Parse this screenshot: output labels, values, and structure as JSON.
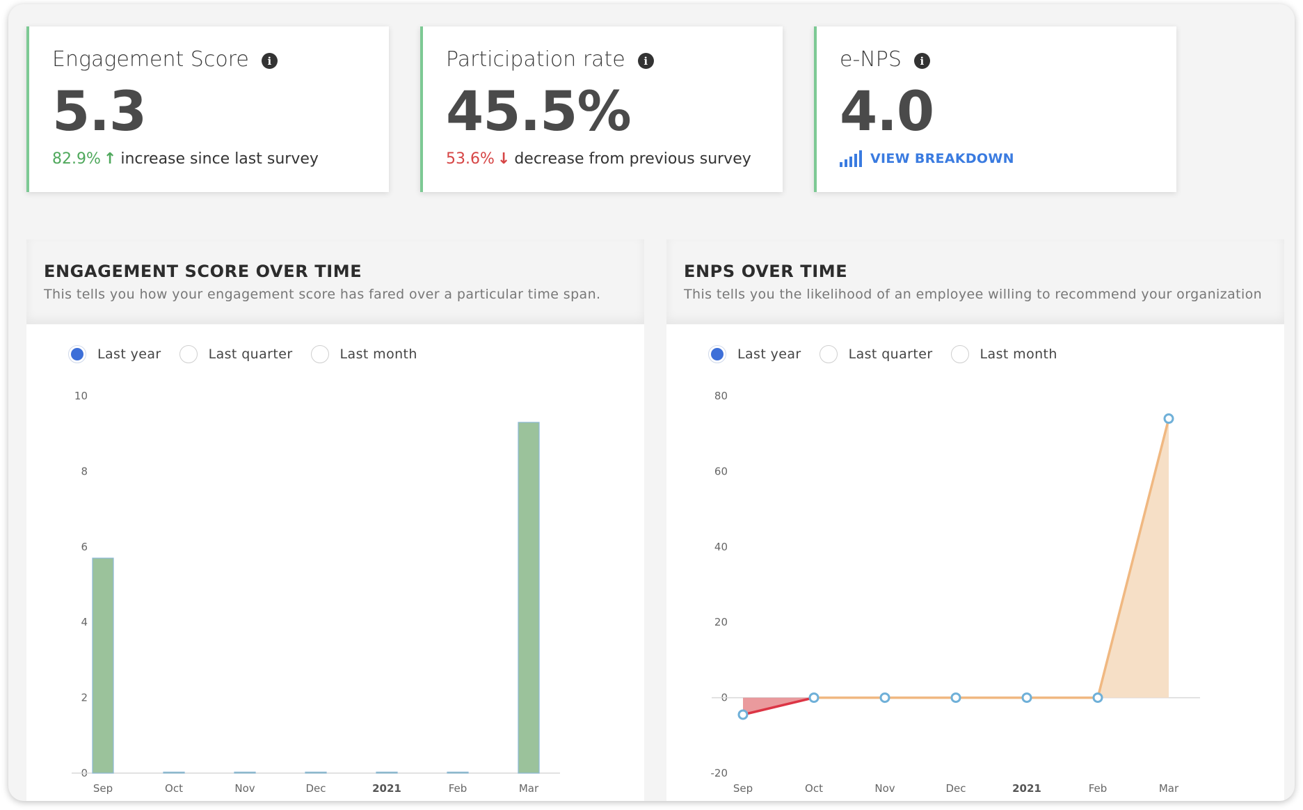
{
  "kpis": [
    {
      "title": "Engagement Score",
      "value": "5.3",
      "delta": "82.9%",
      "arrow": "↑",
      "note": "increase since last survey"
    },
    {
      "title": "Participation rate",
      "value": "45.5%",
      "delta": "53.6%",
      "arrow": "↓",
      "note": "decrease from previous survey"
    },
    {
      "title": "e-NPS",
      "value": "4.0",
      "link": "VIEW BREAKDOWN"
    }
  ],
  "panels": {
    "engagement": {
      "title": "ENGAGEMENT SCORE OVER TIME",
      "desc": "This tells you how your engagement score has fared over a particular time span.",
      "radios": [
        "Last year",
        "Last quarter",
        "Last month"
      ],
      "selected": 0
    },
    "enps": {
      "title": "ENPS OVER TIME",
      "desc": "This tells you the likelihood of an employee willing to recommend your organization",
      "radios": [
        "Last year",
        "Last quarter",
        "Last month"
      ],
      "selected": 0
    }
  },
  "colors": {
    "bar": "#9bc29b",
    "bar_stroke": "#8bb8d6",
    "positive_area": "#f6dfc6",
    "positive_line": "#f0b881",
    "negative_area": "#e88f92",
    "negative_line": "#dc3545",
    "point": "#6fb0d8",
    "accent_border": "#7dc994"
  },
  "chart_data": [
    {
      "type": "bar",
      "categories": [
        "Sep",
        "Oct",
        "Nov",
        "Dec",
        "2021",
        "Feb",
        "Mar"
      ],
      "bold_categories": [
        "2021"
      ],
      "values": [
        5.7,
        0,
        0,
        0,
        0,
        0,
        9.3
      ],
      "ylim": [
        0,
        10
      ],
      "yticks": [
        0,
        2,
        4,
        6,
        8,
        10
      ],
      "title": "",
      "xlabel": "",
      "ylabel": ""
    },
    {
      "type": "area",
      "categories": [
        "Sep",
        "Oct",
        "Nov",
        "Dec",
        "2021",
        "Feb",
        "Mar"
      ],
      "bold_categories": [
        "2021"
      ],
      "values": [
        -4.5,
        0,
        0,
        0,
        0,
        0,
        74
      ],
      "ylim": [
        -20,
        80
      ],
      "yticks": [
        -20,
        0,
        20,
        40,
        60,
        80
      ],
      "title": "",
      "xlabel": "",
      "ylabel": ""
    }
  ]
}
